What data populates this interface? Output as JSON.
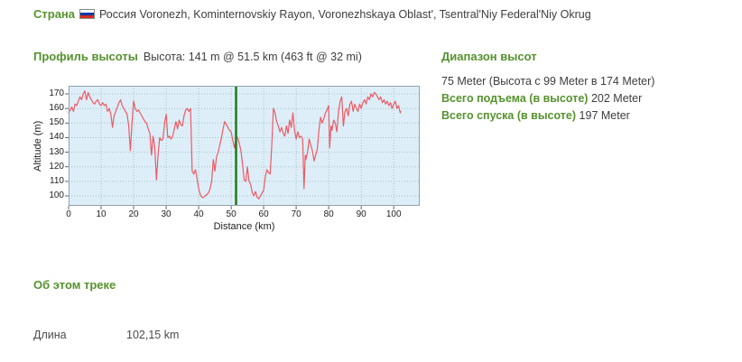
{
  "country": {
    "label": "Страна",
    "flag_icon": "russia-flag-icon",
    "value": "Россия Voronezh, Kominternovskiy Rayon, Voronezhskaya Oblast', Tsentral'Niy Federal'Niy Okrug"
  },
  "profile": {
    "heading": "Профиль высоты",
    "current_position": "Высота: 141 m @ 51.5 km (463 ft @ 32 mi)"
  },
  "elevation_range": {
    "heading": "Диапазон высот",
    "range_text": "75 Meter (Высота с 99 Meter в 174 Meter)",
    "ascent_label": "Всего подъема (в высоте)",
    "ascent_value": "202 Meter",
    "descent_label": "Всего спуска (в высоте)",
    "descent_value": "197 Meter"
  },
  "about": {
    "heading": "Об этом треке",
    "length_label": "Длина",
    "length_value": "102,15 km"
  },
  "flag_colors": {
    "top": "#ffffff",
    "middle": "#0039a6",
    "bottom": "#d52b1e"
  },
  "chart_data": {
    "type": "line",
    "title": "",
    "xlabel": "Distance (km)",
    "ylabel": "Altitude (m)",
    "xticks": [
      0,
      10,
      20,
      30,
      40,
      50,
      60,
      70,
      80,
      90,
      100
    ],
    "yticks": [
      100,
      110,
      120,
      130,
      140,
      150,
      160,
      170
    ],
    "xlim": [
      0,
      108
    ],
    "ylim": [
      93.2,
      175.6
    ],
    "grid": true,
    "legend": false,
    "marker_x": 51.5,
    "marker_value": 141,
    "colors": {
      "line": "#ee5a64",
      "plot_bg": "#ddeef8",
      "grid": "#a3c3c3",
      "border": "#8fa3ad",
      "marker": "#1e7c1e",
      "tick": "#666666"
    },
    "series": [
      {
        "name": "elevation",
        "x": [
          0,
          0.5,
          1,
          1.5,
          2,
          2.5,
          3,
          3.5,
          4,
          4.5,
          5,
          5.5,
          6,
          6.5,
          7,
          7.5,
          8,
          8.5,
          9,
          9.5,
          10,
          10.5,
          11,
          11.5,
          12,
          12.5,
          13,
          13.5,
          14,
          14.5,
          15,
          15.5,
          16,
          16.5,
          17,
          17.5,
          18,
          18.5,
          19,
          19.5,
          20,
          20.5,
          21,
          21.5,
          22,
          22.5,
          23,
          23.5,
          24,
          24.5,
          25,
          25.5,
          26,
          26.5,
          27,
          27.5,
          28,
          28.5,
          29,
          29.5,
          30,
          30.5,
          31,
          31.5,
          32,
          32.5,
          33,
          33.5,
          34,
          34.5,
          35,
          35.5,
          36,
          36.5,
          37,
          37.5,
          38,
          38.5,
          39,
          39.5,
          40,
          40.5,
          41,
          41.5,
          42,
          42.5,
          43,
          43.5,
          44,
          44.5,
          45,
          45.5,
          46,
          46.5,
          47,
          47.5,
          48,
          48.5,
          49,
          49.5,
          50,
          50.5,
          51,
          51.5,
          52,
          52.5,
          53,
          53.5,
          54,
          54.5,
          55,
          55.5,
          56,
          56.5,
          57,
          57.5,
          58,
          58.5,
          59,
          59.5,
          60,
          60.5,
          61,
          61.5,
          62,
          62.5,
          63,
          63.5,
          64,
          64.5,
          65,
          65.5,
          66,
          66.5,
          67,
          67.5,
          68,
          68.5,
          69,
          69.5,
          70,
          70.5,
          71,
          71.5,
          72,
          72.4,
          72.8,
          73,
          73.5,
          74,
          74.5,
          75,
          75.5,
          76,
          76.5,
          77,
          77.5,
          78,
          78.5,
          79,
          79.5,
          80,
          80.3,
          80.7,
          81,
          81.5,
          82,
          82.5,
          83,
          83.5,
          84,
          84.5,
          85,
          85.5,
          86,
          86.5,
          87,
          87.5,
          88,
          88.5,
          89,
          89.5,
          90,
          90.5,
          91,
          91.5,
          92,
          92.5,
          93,
          93.5,
          94,
          94.5,
          95,
          95.5,
          96,
          96.5,
          97,
          97.5,
          98,
          98.5,
          99,
          99.5,
          100,
          100.5,
          101,
          101.5,
          102,
          102.15
        ],
        "y": [
          157,
          159,
          161,
          158,
          163,
          162,
          165,
          168,
          166,
          170,
          172,
          166,
          171,
          168,
          166,
          164,
          163,
          165,
          166,
          163,
          162,
          164,
          162,
          163,
          158,
          160,
          156,
          147,
          155,
          158,
          161,
          164,
          166,
          162,
          160,
          158,
          156,
          148,
          131,
          150,
          165,
          160,
          158,
          159,
          157,
          155,
          153,
          151,
          150,
          146,
          143,
          128,
          141,
          134,
          111,
          128,
          140,
          138,
          139,
          150,
          156,
          140,
          141,
          139,
          141,
          146,
          151,
          146,
          152,
          149,
          148,
          155,
          159,
          160,
          158,
          160,
          117,
          115,
          118,
          112,
          105,
          101,
          99,
          99,
          100,
          101,
          102,
          105,
          110,
          125,
          117,
          127,
          130,
          135,
          140,
          146,
          151,
          149,
          147,
          145,
          144,
          138,
          133,
          141,
          140,
          136,
          131,
          122,
          111,
          110,
          120,
          110,
          108,
          102,
          100,
          103,
          99,
          98,
          100,
          102,
          104,
          113,
          118,
          116,
          115,
          135,
          160,
          157,
          151,
          148,
          144,
          147,
          143,
          141,
          148,
          143,
          152,
          147,
          157,
          145,
          139,
          144,
          140,
          141,
          139,
          105,
          128,
          125,
          130,
          139,
          135,
          131,
          124,
          128,
          132,
          145,
          154,
          150,
          153,
          157,
          159,
          162,
          133,
          148,
          145,
          152,
          150,
          144,
          158,
          165,
          168,
          148,
          158,
          160,
          155,
          163,
          165,
          158,
          163,
          160,
          158,
          163,
          160,
          164,
          166,
          163,
          168,
          166,
          170,
          168,
          171,
          170,
          168,
          166,
          168,
          164,
          166,
          163,
          165,
          162,
          164,
          160,
          163,
          165,
          160,
          162,
          157,
          158
        ]
      }
    ]
  }
}
